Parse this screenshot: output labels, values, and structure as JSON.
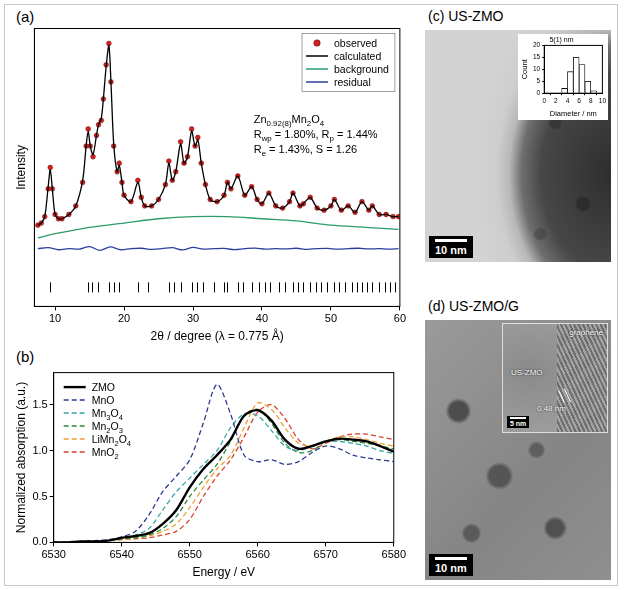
{
  "chart_data": [
    {
      "panel": "(a)",
      "type": "line",
      "x_label": "2θ / degree (λ = 0.775 Å)",
      "y_label": "Intensity",
      "xlim": [
        7,
        60
      ],
      "xticks": [
        10,
        20,
        30,
        40,
        50,
        60
      ],
      "ylim": [
        -0.25,
        1.05
      ],
      "tick_labels": "x",
      "grid": false,
      "legend": "upper right",
      "annotations": [
        "Zn0.92(8)Mn2O4",
        "Rwp = 1.80%, Rp = 1.44%",
        "Re = 1.43%, S = 1.26"
      ],
      "x": [
        7.5,
        8,
        8.5,
        9,
        9.3,
        9.6,
        10,
        10.5,
        11,
        12,
        13,
        14,
        14.5,
        14.8,
        15.1,
        15.5,
        16,
        16.3,
        16.7,
        17,
        17.4,
        17.8,
        18.1,
        18.5,
        19,
        19.3,
        19.7,
        20,
        21,
        22,
        22.5,
        23,
        24,
        25,
        26,
        26.5,
        27,
        27.5,
        28.2,
        28.7,
        29.2,
        29.8,
        30.3,
        30.7,
        31.2,
        31.8,
        32.5,
        33.5,
        34.5,
        35,
        35.5,
        36.5,
        37.5,
        38.5,
        39.3,
        40,
        41,
        42,
        43,
        44,
        44.5,
        45.5,
        46,
        47,
        48,
        49,
        50,
        50.5,
        51.5,
        52.5,
        53.5,
        54.5,
        55.5,
        56,
        57,
        58,
        59,
        59.8
      ],
      "series": [
        {
          "name": "observed",
          "color": "#d62020",
          "marker": "circle",
          "line_style": "none",
          "values": [
            0.13,
            0.14,
            0.17,
            0.3,
            0.4,
            0.3,
            0.18,
            0.16,
            0.16,
            0.18,
            0.22,
            0.33,
            0.5,
            0.58,
            0.5,
            0.45,
            0.55,
            0.6,
            0.62,
            0.72,
            0.88,
            0.98,
            0.8,
            0.5,
            0.38,
            0.42,
            0.33,
            0.27,
            0.24,
            0.34,
            0.26,
            0.22,
            0.22,
            0.25,
            0.32,
            0.43,
            0.34,
            0.38,
            0.52,
            0.42,
            0.45,
            0.58,
            0.5,
            0.54,
            0.42,
            0.32,
            0.25,
            0.24,
            0.27,
            0.33,
            0.3,
            0.36,
            0.27,
            0.31,
            0.25,
            0.23,
            0.28,
            0.22,
            0.21,
            0.24,
            0.28,
            0.22,
            0.23,
            0.26,
            0.21,
            0.2,
            0.22,
            0.25,
            0.2,
            0.22,
            0.19,
            0.24,
            0.2,
            0.22,
            0.18,
            0.18,
            0.17,
            0.17
          ]
        },
        {
          "name": "calculated",
          "color": "#000000",
          "line_style": "solid",
          "values": [
            0.13,
            0.14,
            0.17,
            0.31,
            0.39,
            0.3,
            0.18,
            0.16,
            0.16,
            0.18,
            0.22,
            0.34,
            0.5,
            0.57,
            0.5,
            0.46,
            0.55,
            0.6,
            0.63,
            0.72,
            0.87,
            0.97,
            0.8,
            0.51,
            0.38,
            0.41,
            0.33,
            0.27,
            0.24,
            0.33,
            0.26,
            0.22,
            0.22,
            0.25,
            0.32,
            0.42,
            0.34,
            0.38,
            0.51,
            0.42,
            0.45,
            0.57,
            0.5,
            0.53,
            0.42,
            0.32,
            0.25,
            0.24,
            0.27,
            0.33,
            0.3,
            0.36,
            0.27,
            0.31,
            0.25,
            0.23,
            0.28,
            0.22,
            0.21,
            0.24,
            0.28,
            0.22,
            0.23,
            0.26,
            0.21,
            0.2,
            0.22,
            0.25,
            0.2,
            0.22,
            0.19,
            0.24,
            0.2,
            0.22,
            0.18,
            0.18,
            0.17,
            0.17
          ]
        },
        {
          "name": "background",
          "color": "#2a9d6a",
          "line_style": "solid",
          "x": [
            7.5,
            10,
            15,
            20,
            25,
            30,
            35,
            40,
            45,
            50,
            55,
            59.8
          ],
          "values": [
            0.07,
            0.09,
            0.12,
            0.14,
            0.16,
            0.17,
            0.17,
            0.16,
            0.15,
            0.13,
            0.12,
            0.11
          ]
        },
        {
          "name": "residual",
          "color": "#2a3fa0",
          "line_style": "solid",
          "x": [
            7.5,
            9,
            10.5,
            12,
            13.5,
            15,
            16.5,
            18,
            19.5,
            21,
            22.5,
            24,
            25.5,
            27,
            28.5,
            30,
            31.5,
            33,
            34.5,
            36,
            37.5,
            39,
            40.5,
            42,
            43.5,
            45,
            46.5,
            48,
            49.5,
            51,
            52.5,
            54,
            55.5,
            57,
            58.5,
            59.8
          ],
          "values": [
            0.02,
            0.025,
            0.015,
            0.02,
            0.018,
            0.03,
            0.012,
            0.028,
            0.015,
            0.02,
            0.022,
            0.017,
            0.02,
            0.025,
            0.014,
            0.026,
            0.018,
            0.02,
            0.021,
            0.016,
            0.02,
            0.023,
            0.018,
            0.02,
            0.019,
            0.022,
            0.017,
            0.02,
            0.021,
            0.018,
            0.02,
            0.022,
            0.019,
            0.02,
            0.018,
            0.02
          ]
        }
      ],
      "reflections": [
        9.3,
        14.8,
        15.3,
        16.2,
        17.8,
        18.6,
        19.3,
        22,
        23.5,
        26.5,
        27.2,
        28.2,
        29.8,
        30.6,
        31.4,
        33,
        34.5,
        35,
        36.5,
        37.2,
        38.5,
        39.5,
        40.5,
        41.2,
        42.5,
        43.3,
        44.5,
        45.2,
        46,
        47,
        47.8,
        48.5,
        49.5,
        50.5,
        51.2,
        52,
        53,
        53.8,
        54.5,
        55.3,
        56,
        57,
        57.8,
        58.5,
        59.3
      ]
    },
    {
      "panel": "(b)",
      "type": "line",
      "x_label": "Energy / eV",
      "y_label": "Normalized absorption (a.u.)",
      "xlim": [
        6530,
        6580
      ],
      "xticks": [
        6530,
        6540,
        6550,
        6560,
        6570,
        6580
      ],
      "ylim": [
        0,
        1.85
      ],
      "yticks": [
        {
          "value": 0,
          "label": "0.0"
        },
        0.5,
        {
          "value": 1,
          "label": "1.0"
        },
        1.5
      ],
      "grid": false,
      "legend": "upper left",
      "x": [
        6530,
        6532,
        6534,
        6536,
        6538,
        6540,
        6542,
        6544,
        6546,
        6548,
        6550,
        6552,
        6554,
        6556,
        6558,
        6560,
        6562,
        6564,
        6566,
        6568,
        6570,
        6572,
        6574,
        6576,
        6578,
        6580
      ],
      "series": [
        {
          "name": "ZMO",
          "color": "#000000",
          "line_style": "solid",
          "values": [
            0,
            0,
            0.01,
            0.01,
            0.02,
            0.05,
            0.07,
            0.1,
            0.2,
            0.35,
            0.6,
            0.8,
            0.95,
            1.12,
            1.38,
            1.44,
            1.33,
            1.12,
            1.02,
            1.05,
            1.1,
            1.13,
            1.12,
            1.1,
            1.05,
            0.99
          ]
        },
        {
          "name": "MnO",
          "color": "#2b3a8f",
          "line_style": "dashed",
          "values": [
            0,
            0,
            0.01,
            0.02,
            0.03,
            0.06,
            0.12,
            0.3,
            0.55,
            0.72,
            0.9,
            1.3,
            1.72,
            1.4,
            0.95,
            0.88,
            0.9,
            0.85,
            0.88,
            0.98,
            1.05,
            1.02,
            0.95,
            0.92,
            0.9,
            0.88
          ]
        },
        {
          "name": "Mn3O4",
          "color": "#3aa6a6",
          "line_style": "dashed",
          "values": [
            0,
            0,
            0.01,
            0.01,
            0.02,
            0.05,
            0.08,
            0.15,
            0.35,
            0.55,
            0.7,
            0.85,
            1.0,
            1.25,
            1.4,
            1.38,
            1.22,
            1.05,
            1.0,
            1.05,
            1.1,
            1.1,
            1.08,
            1.05,
            1.0,
            0.97
          ]
        },
        {
          "name": "Mn2O3",
          "color": "#2e8b3a",
          "line_style": "dashed",
          "values": [
            0,
            0,
            0,
            0.01,
            0.02,
            0.04,
            0.05,
            0.08,
            0.15,
            0.28,
            0.5,
            0.68,
            0.85,
            1.1,
            1.38,
            1.45,
            1.3,
            1.08,
            0.98,
            1.0,
            1.1,
            1.12,
            1.1,
            1.08,
            1.05,
            1.02
          ]
        },
        {
          "name": "LiMn2O4",
          "color": "#f0a030",
          "line_style": "dashed",
          "values": [
            0,
            0,
            0,
            0.01,
            0.02,
            0.03,
            0.05,
            0.07,
            0.12,
            0.2,
            0.38,
            0.6,
            0.8,
            0.95,
            1.25,
            1.52,
            1.45,
            1.25,
            1.08,
            1.05,
            1.1,
            1.15,
            1.15,
            1.12,
            1.08,
            1.05
          ]
        },
        {
          "name": "MnO2",
          "color": "#d9432b",
          "line_style": "dashed",
          "values": [
            0,
            0,
            0,
            0.01,
            0.02,
            0.03,
            0.04,
            0.05,
            0.08,
            0.12,
            0.25,
            0.5,
            0.72,
            0.9,
            1.15,
            1.42,
            1.5,
            1.35,
            1.12,
            1.02,
            1.08,
            1.15,
            1.18,
            1.18,
            1.15,
            1.12
          ]
        }
      ]
    },
    {
      "panel": "(c)",
      "type": "histogram",
      "title": "5(1) nm",
      "x_label": "Diameter / nm",
      "y_label": "Count",
      "bins": [
        3,
        4,
        5,
        6,
        7,
        8,
        9
      ],
      "counts": [
        2,
        9,
        15,
        12,
        5,
        1
      ],
      "color": "#ffffff",
      "xlim": [
        0,
        10
      ],
      "xticks": [
        0,
        2,
        4,
        6,
        8,
        10
      ],
      "ylim": [
        0,
        20
      ],
      "yticks": [
        0,
        5,
        10,
        15,
        20
      ],
      "grid": false
    }
  ],
  "images": [
    {
      "panel": "(c)",
      "title": "US-ZMO",
      "scale_bar": "10 nm"
    },
    {
      "panel": "(d)",
      "title": "US-ZMO/G",
      "scale_bar": "10 nm",
      "inset": {
        "scale_bar": "5 nm",
        "labels": [
          "graphene",
          "US-ZMO",
          "0.48 nm"
        ]
      }
    }
  ]
}
